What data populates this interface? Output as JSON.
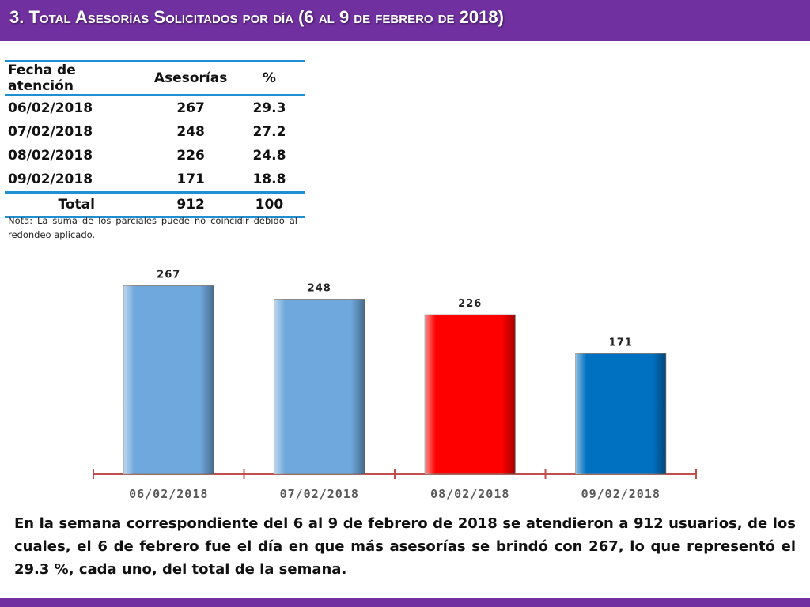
{
  "header": {
    "title": "3.  Total Asesorías Solicitados por día  (6 al 9 de febrero de 2018)"
  },
  "table": {
    "columns": [
      "Fecha de atención",
      "Asesorías",
      "%"
    ],
    "rows": [
      [
        "06/02/2018",
        "267",
        "29.3"
      ],
      [
        "07/02/2018",
        "248",
        "27.2"
      ],
      [
        "08/02/2018",
        "226",
        "24.8"
      ],
      [
        "09/02/2018",
        "171",
        "18.8"
      ]
    ],
    "total": [
      "Total",
      "912",
      "100"
    ]
  },
  "note": "Nota: La suma de los parciales puede no coincidir debido al redondeo aplicado.",
  "chart_data": {
    "type": "bar",
    "categories": [
      "06/02/2018",
      "07/02/2018",
      "08/02/2018",
      "09/02/2018"
    ],
    "values": [
      267,
      248,
      226,
      171
    ],
    "title": "",
    "xlabel": "",
    "ylabel": "",
    "ylim": [
      0,
      280
    ],
    "grid": false,
    "legend": "none",
    "colors": [
      "#6fa8dc",
      "#6fa8dc",
      "#ff0000",
      "#0070c0"
    ],
    "axis_color": "#c0504d"
  },
  "summary": "En la semana correspondiente del 6 al 9 de febrero de 2018 se atendieron a 912 usuarios, de los cuales, el 6 de febrero fue el día en que más asesorías se brindó con 267, lo que representó el 29.3 %, cada uno, del total de la semana.",
  "colors": {
    "title_bar": "#7030a0",
    "table_rule": "#1e8fd0"
  }
}
